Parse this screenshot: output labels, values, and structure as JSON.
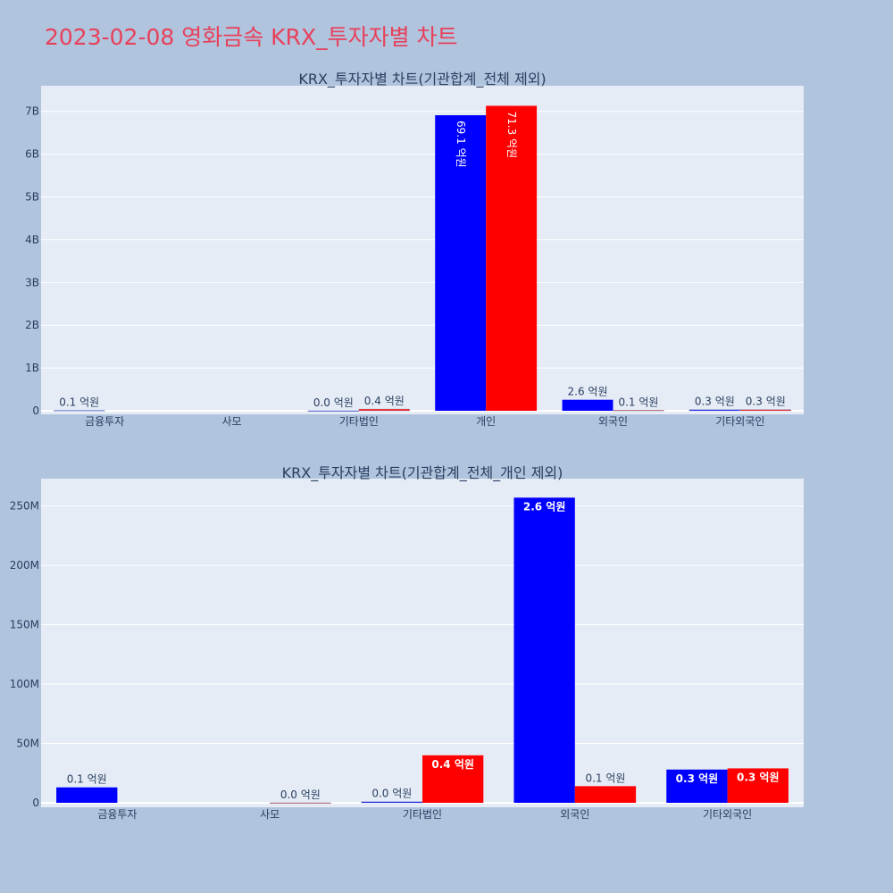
{
  "title": "2023-02-08 영화금속 KRX_투자자별 차트",
  "colors": {
    "series_a": "#0000ff",
    "series_b": "#ff0000",
    "plot_bg": "#e5ecf6",
    "page_bg": "#b0c4de",
    "title": "#e8405a",
    "text": "#2a3f5f"
  },
  "chart_data": [
    {
      "type": "bar",
      "title": "KRX_투자자별 차트(기관합계_전체 제외)",
      "categories": [
        "금융투자",
        "사모",
        "기타법인",
        "개인",
        "외국인",
        "기타외국인"
      ],
      "ylim": [
        0,
        7600000000
      ],
      "yticks": [
        0,
        1000000000,
        2000000000,
        3000000000,
        4000000000,
        5000000000,
        6000000000,
        7000000000
      ],
      "ytick_labels": [
        "0",
        "1B",
        "2B",
        "3B",
        "4B",
        "5B",
        "6B",
        "7B"
      ],
      "grid": true,
      "series": [
        {
          "values": [
            10000000,
            0,
            2000000,
            6910000000,
            257000000,
            28000000
          ],
          "labels": [
            "0.1 억원",
            "",
            "0.0 억원",
            "69.1 억원",
            "2.6 억원",
            "0.3 억원"
          ]
        },
        {
          "values": [
            0,
            0,
            40000000,
            7130000000,
            14000000,
            29000000
          ],
          "labels": [
            "",
            "",
            "0.4 억원",
            "71.3 억원",
            "0.1 억원",
            "0.3 억원"
          ]
        }
      ]
    },
    {
      "type": "bar",
      "title": "KRX_투자자별 차트(기관합계_전체_개인 제외)",
      "categories": [
        "금융투자",
        "사모",
        "기타법인",
        "외국인",
        "기타외국인"
      ],
      "ylim": [
        0,
        273000000
      ],
      "yticks": [
        0,
        50000000,
        100000000,
        150000000,
        200000000,
        250000000
      ],
      "ytick_labels": [
        "0",
        "50M",
        "100M",
        "150M",
        "200M",
        "250M"
      ],
      "grid": true,
      "series": [
        {
          "values": [
            13000000,
            0,
            1000000,
            257000000,
            28000000
          ],
          "labels": [
            "0.1 억원",
            "",
            "0.0 억원",
            "2.6 억원",
            "0.3 억원"
          ]
        },
        {
          "values": [
            0,
            100000,
            40000000,
            14000000,
            29000000
          ],
          "labels": [
            "",
            "0.0 억원",
            "0.4 억원",
            "0.1 억원",
            "0.3 억원"
          ]
        }
      ]
    }
  ]
}
